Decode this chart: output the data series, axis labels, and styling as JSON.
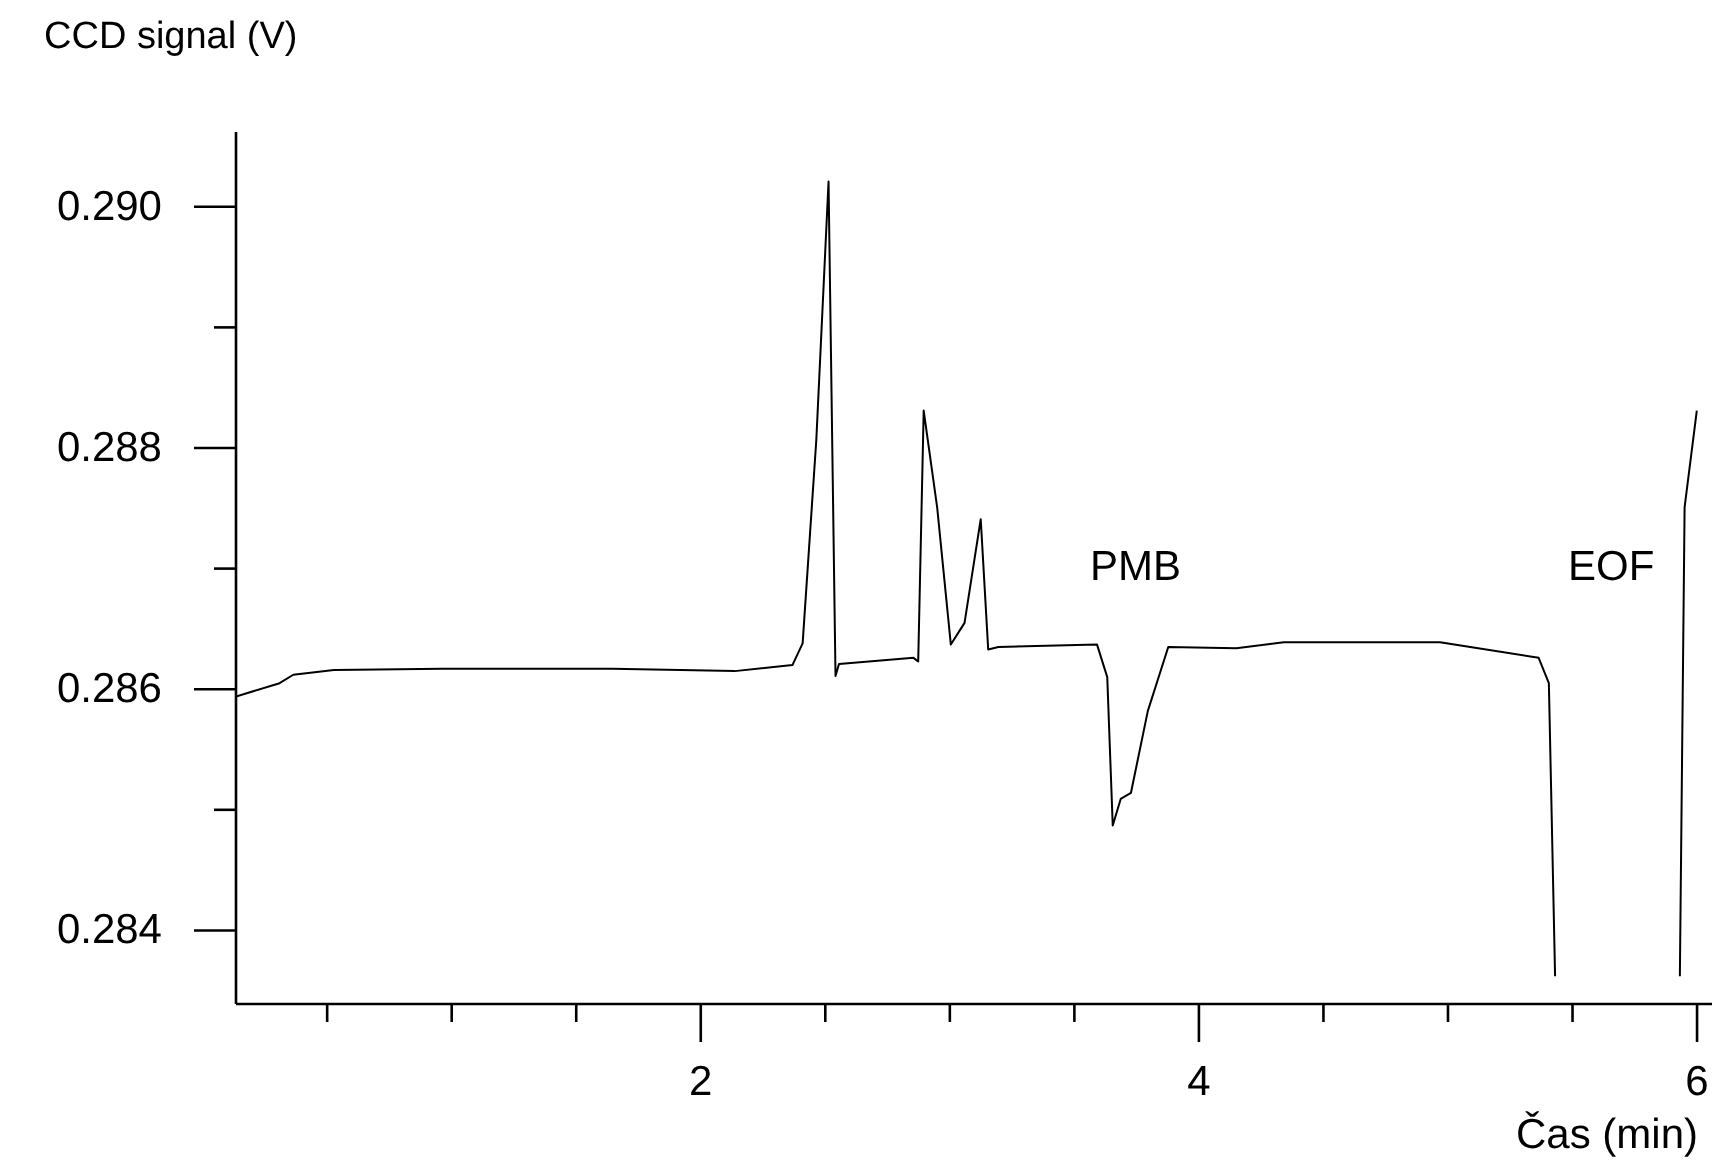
{
  "chart_data": {
    "type": "line",
    "ylabel": "CCD signal (V)",
    "xlabel": "Čas (min)",
    "xlim": [
      0.134,
      6.06
    ],
    "ylim": [
      0.28339,
      0.29062
    ],
    "xticks": [
      {
        "value": 0.5,
        "label": null
      },
      {
        "value": 1,
        "label": null
      },
      {
        "value": 1.5,
        "label": null
      },
      2,
      {
        "value": 2.5,
        "label": null
      },
      {
        "value": 3,
        "label": null
      },
      {
        "value": 3.5,
        "label": null
      },
      4,
      {
        "value": 4.5,
        "label": null
      },
      {
        "value": 5,
        "label": null
      },
      {
        "value": 5.5,
        "label": null
      },
      6
    ],
    "yticks": [
      {
        "value": 0.284,
        "label": "0.284"
      },
      {
        "value": 0.285,
        "label": null
      },
      {
        "value": 0.286,
        "label": "0.286"
      },
      {
        "value": 0.287,
        "label": null
      },
      {
        "value": 0.288,
        "label": "0.288"
      },
      {
        "value": 0.289,
        "label": null
      },
      {
        "value": 0.29,
        "label": "0.290"
      }
    ],
    "grid": false,
    "legend": false,
    "marker": "none",
    "line_style": "solid",
    "annotations": [
      "PMB",
      "EOF"
    ],
    "series": [
      {
        "color": "#000000",
        "x": [
          0.134,
          0.309,
          0.364,
          0.527,
          0.963,
          1.645,
          2.136,
          2.368,
          2.409,
          2.464,
          2.513,
          2.541,
          2.555,
          2.854,
          2.873,
          2.895,
          2.949,
          3.004,
          3.059,
          3.124,
          3.154,
          3.195,
          3.591,
          3.632,
          3.654,
          3.686,
          3.727,
          3.795,
          3.877,
          4.15,
          4.341,
          4.968,
          5.364,
          5.405,
          5.43,
          5.7,
          5.931,
          5.95,
          5.999
        ],
        "values": [
          0.28594,
          0.28605,
          0.28612,
          0.28616,
          0.28617,
          0.28617,
          0.28615,
          0.2862,
          0.28638,
          0.28807,
          0.29021,
          0.28611,
          0.28621,
          0.28626,
          0.28623,
          0.28831,
          0.28751,
          0.28637,
          0.28655,
          0.28741,
          0.28633,
          0.28635,
          0.28637,
          0.2861,
          0.28487,
          0.28509,
          0.28514,
          0.28582,
          0.28635,
          0.28634,
          0.28639,
          0.28639,
          0.28626,
          0.28605,
          0.28362,
          null,
          0.28362,
          0.28751,
          0.28831
        ]
      }
    ]
  }
}
